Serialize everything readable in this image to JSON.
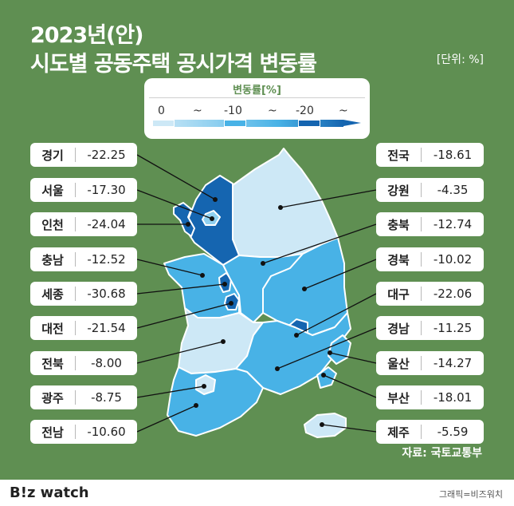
{
  "header": {
    "title_line1": "2023년(안)",
    "title_line2": "시도별 공동주택 공시가격 변동률",
    "unit": "[단위: %]"
  },
  "legend": {
    "title": "변동률[%]",
    "ticks": [
      "0",
      "~",
      "-10",
      "~",
      "-20",
      "~"
    ],
    "colors": [
      "#cde8f6",
      "#8fd0f0",
      "#48b2e6",
      "#1565b0"
    ]
  },
  "regions": {
    "gyeonggi": {
      "name": "경기",
      "value": "-22.25"
    },
    "seoul": {
      "name": "서울",
      "value": "-17.30"
    },
    "incheon": {
      "name": "인천",
      "value": "-24.04"
    },
    "chungnam": {
      "name": "충남",
      "value": "-12.52"
    },
    "sejong": {
      "name": "세종",
      "value": "-30.68"
    },
    "daejeon": {
      "name": "대전",
      "value": "-21.54"
    },
    "jeonbuk": {
      "name": "전북",
      "value": "-8.00"
    },
    "gwangju": {
      "name": "광주",
      "value": "-8.75"
    },
    "jeonnam": {
      "name": "전남",
      "value": "-10.60"
    },
    "national": {
      "name": "전국",
      "value": "-18.61"
    },
    "gangwon": {
      "name": "강원",
      "value": "-4.35"
    },
    "chungbuk": {
      "name": "충북",
      "value": "-12.74"
    },
    "gyeongbuk": {
      "name": "경북",
      "value": "-10.02"
    },
    "daegu": {
      "name": "대구",
      "value": "-22.06"
    },
    "gyeongnam": {
      "name": "경남",
      "value": "-11.25"
    },
    "ulsan": {
      "name": "울산",
      "value": "-14.27"
    },
    "busan": {
      "name": "부산",
      "value": "-18.01"
    },
    "jeju": {
      "name": "제주",
      "value": "-5.59"
    }
  },
  "source": "자료: 국토교통부",
  "footer": {
    "brand_b": "B",
    "brand_rest": "!z watch",
    "credit": "그래픽=비즈워치"
  },
  "colors": {
    "background": "#5f8f52",
    "accent_text": "#5f8f52",
    "darkest": "#1565b0"
  }
}
